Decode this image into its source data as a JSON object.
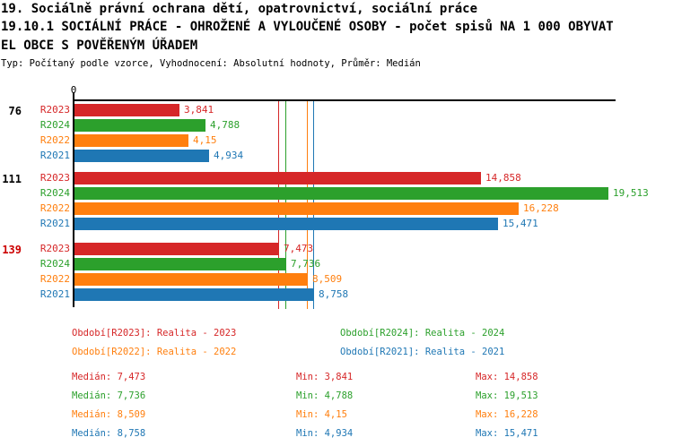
{
  "header": {
    "line1": "19. Sociálně právní ochrana dětí, opatrovnictví, sociální práce",
    "line2": "19.10.1 SOCIÁLNÍ PRÁCE - OHROŽENÉ A VYLOUČENÉ OSOBY - počet spisů NA 1 000 OBYVAT",
    "line3": "EL OBCE S POVĚŘENÝM ÚŘADEM",
    "meta": "Typ: Počítaný podle vzorce, Vyhodnocení: Absolutní hodnoty, Průměr: Medián"
  },
  "colors": {
    "R2023": "#d62728",
    "R2024": "#2ca02c",
    "R2022": "#ff7f0e",
    "R2021": "#1f77b4",
    "axis": "#000000",
    "group_label_default": "#000000",
    "group_label_highlight": "#cc0000"
  },
  "chart_data": {
    "type": "bar",
    "orientation": "horizontal",
    "origin_label": "0",
    "axis_range": [
      0,
      19.7
    ],
    "grid": false,
    "series_order": [
      "R2023",
      "R2024",
      "R2022",
      "R2021"
    ],
    "groups": [
      {
        "label": "76",
        "label_color": "#000000",
        "bars": [
          {
            "series": "R2023",
            "value": 3.841,
            "display": "3,841"
          },
          {
            "series": "R2024",
            "value": 4.788,
            "display": "4,788"
          },
          {
            "series": "R2022",
            "value": 4.15,
            "display": "4,15"
          },
          {
            "series": "R2021",
            "value": 4.934,
            "display": "4,934"
          }
        ]
      },
      {
        "label": "111",
        "label_color": "#000000",
        "bars": [
          {
            "series": "R2023",
            "value": 14.858,
            "display": "14,858"
          },
          {
            "series": "R2024",
            "value": 19.513,
            "display": "19,513"
          },
          {
            "series": "R2022",
            "value": 16.228,
            "display": "16,228"
          },
          {
            "series": "R2021",
            "value": 15.471,
            "display": "15,471"
          }
        ]
      },
      {
        "label": "139",
        "label_color": "#cc0000",
        "bars": [
          {
            "series": "R2023",
            "value": 7.473,
            "display": "7,473"
          },
          {
            "series": "R2024",
            "value": 7.736,
            "display": "7,736"
          },
          {
            "series": "R2022",
            "value": 8.509,
            "display": "8,509"
          },
          {
            "series": "R2021",
            "value": 8.758,
            "display": "8,758"
          }
        ]
      }
    ],
    "median_lines": [
      {
        "series": "R2023",
        "value": 7.473
      },
      {
        "series": "R2024",
        "value": 7.736
      },
      {
        "series": "R2022",
        "value": 8.509
      },
      {
        "series": "R2021",
        "value": 8.758
      }
    ]
  },
  "legend": [
    {
      "series": "R2023",
      "text": "Období[R2023]: Realita - 2023"
    },
    {
      "series": "R2024",
      "text": "Období[R2024]: Realita - 2024"
    },
    {
      "series": "R2022",
      "text": "Období[R2022]: Realita - 2022"
    },
    {
      "series": "R2021",
      "text": "Období[R2021]: Realita - 2021"
    }
  ],
  "stats": [
    {
      "series": "R2023",
      "median": "Medián: 7,473",
      "min": "Min: 3,841",
      "max": "Max: 14,858"
    },
    {
      "series": "R2024",
      "median": "Medián: 7,736",
      "min": "Min: 4,788",
      "max": "Max: 19,513"
    },
    {
      "series": "R2022",
      "median": "Medián: 8,509",
      "min": "Min: 4,15",
      "max": "Max: 16,228"
    },
    {
      "series": "R2021",
      "median": "Medián: 8,758",
      "min": "Min: 4,934",
      "max": "Max: 15,471"
    }
  ]
}
